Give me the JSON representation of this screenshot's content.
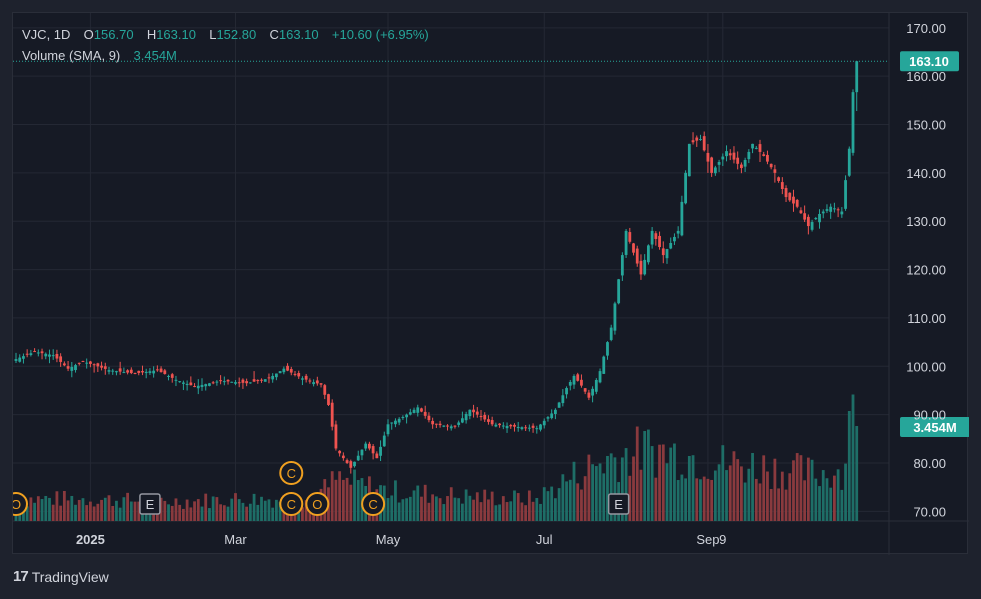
{
  "brand": {
    "logo_mark": "17",
    "name": "TradingView"
  },
  "legend": {
    "symbol": "VJC",
    "interval": "1D",
    "o_label": "O",
    "o_value": "156.70",
    "h_label": "H",
    "h_value": "163.10",
    "l_label": "L",
    "l_value": "152.80",
    "c_label": "C",
    "c_value": "163.10",
    "change": "+10.60 (+6.95%)",
    "volume_label": "Volume (SMA, 9)",
    "volume_value": "3.454M"
  },
  "colors": {
    "up": "#26a69a",
    "down": "#ef5350",
    "vol_up": "#1e6e67",
    "vol_down": "#8a3a3e",
    "badge": "#f0a020",
    "background": "#161a25",
    "grid": "#242834"
  },
  "chart_data": {
    "type": "candlestick",
    "price_axis": {
      "ticks": [
        70,
        80,
        90,
        100,
        110,
        120,
        130,
        140,
        150,
        160,
        170
      ],
      "tick_labels": [
        "70.00",
        "80.00",
        "90.00",
        "100.00",
        "110.00",
        "120.00",
        "130.00",
        "140.00",
        "150.00",
        "160.00",
        "170.00"
      ],
      "range": [
        68,
        171
      ]
    },
    "time_axis": {
      "labels": [
        {
          "text": "2025",
          "date": "2025-01-01"
        },
        {
          "text": "Mar",
          "date": "2025-03-01"
        },
        {
          "text": "May",
          "date": "2025-05-01"
        },
        {
          "text": "Jul",
          "date": "2025-07-01"
        },
        {
          "text": "Sep",
          "date": "2025-09-01"
        },
        {
          "text": "9",
          "date": "2025-09-09"
        }
      ]
    },
    "last_price": {
      "value": 163.1,
      "label": "163.10"
    },
    "volume_badge": {
      "value": 3.454,
      "label": "3.454M"
    },
    "grid": true,
    "events": [
      {
        "letter": "O",
        "date": "2024-12-04",
        "stack": 0
      },
      {
        "letter": "E",
        "date": "2025-01-23",
        "stack": 0
      },
      {
        "letter": "C",
        "date": "2025-03-24",
        "stack": 0
      },
      {
        "letter": "C",
        "date": "2025-03-24",
        "stack": 1
      },
      {
        "letter": "O",
        "date": "2025-04-02",
        "stack": 0
      },
      {
        "letter": "C",
        "date": "2025-04-24",
        "stack": 0
      },
      {
        "letter": "E",
        "date": "2025-07-29",
        "stack": 0
      }
    ],
    "candles": {
      "start_date": "2024-12-04",
      "skip_dates": [
        "2025-01-28",
        "2025-01-29",
        "2025-01-30",
        "2025-01-31",
        "2025-04-07",
        "2025-04-30",
        "2025-05-01",
        "2025-09-01",
        "2025-09-02"
      ],
      "anchors": [
        [
          0,
          101.5
        ],
        [
          5,
          103
        ],
        [
          10,
          102.3
        ],
        [
          14,
          99.5
        ],
        [
          18,
          101
        ],
        [
          25,
          99.2
        ],
        [
          32,
          98.5
        ],
        [
          38,
          99.2
        ],
        [
          43,
          97.2
        ],
        [
          48,
          95.8
        ],
        [
          55,
          97
        ],
        [
          62,
          96.5
        ],
        [
          68,
          97.5
        ],
        [
          72,
          99.5
        ],
        [
          77,
          97.5
        ],
        [
          82,
          96.2
        ],
        [
          84,
          92
        ],
        [
          86,
          83
        ],
        [
          90,
          79
        ],
        [
          94,
          84
        ],
        [
          97,
          81
        ],
        [
          100,
          88
        ],
        [
          104,
          89.5
        ],
        [
          108,
          91.5
        ],
        [
          112,
          88
        ],
        [
          118,
          87.5
        ],
        [
          122,
          91
        ],
        [
          128,
          88
        ],
        [
          134,
          87.5
        ],
        [
          140,
          87.2
        ],
        [
          145,
          91
        ],
        [
          148,
          95.5
        ],
        [
          150,
          98
        ],
        [
          152,
          96
        ],
        [
          154,
          93.5
        ],
        [
          157,
          99
        ],
        [
          160,
          108
        ],
        [
          164,
          128
        ],
        [
          168,
          119
        ],
        [
          171,
          128
        ],
        [
          174,
          123
        ],
        [
          178,
          128
        ],
        [
          181,
          146
        ],
        [
          184,
          147
        ],
        [
          187,
          140
        ],
        [
          191,
          144.5
        ],
        [
          195,
          141
        ],
        [
          198,
          146
        ],
        [
          201,
          143.5
        ],
        [
          204,
          140
        ],
        [
          207,
          135
        ],
        [
          210,
          133
        ],
        [
          213,
          129
        ],
        [
          216,
          131.5
        ],
        [
          219,
          133
        ],
        [
          222,
          132
        ],
        [
          224,
          145
        ],
        [
          225,
          156.7
        ],
        [
          226,
          163.1
        ]
      ],
      "volume_anchors": [
        [
          0,
          0.8
        ],
        [
          20,
          0.8
        ],
        [
          40,
          0.7
        ],
        [
          60,
          0.8
        ],
        [
          80,
          0.8
        ],
        [
          86,
          1.5
        ],
        [
          100,
          1.1
        ],
        [
          120,
          0.9
        ],
        [
          140,
          0.8
        ],
        [
          148,
          1.5
        ],
        [
          155,
          2.0
        ],
        [
          160,
          2.3
        ],
        [
          170,
          2.6
        ],
        [
          180,
          2.4
        ],
        [
          190,
          2.1
        ],
        [
          200,
          2.0
        ],
        [
          215,
          1.7
        ],
        [
          223,
          1.9
        ],
        [
          224,
          4.0
        ],
        [
          225,
          4.6
        ],
        [
          226,
          3.454
        ]
      ],
      "volume_max": 5.2
    }
  }
}
